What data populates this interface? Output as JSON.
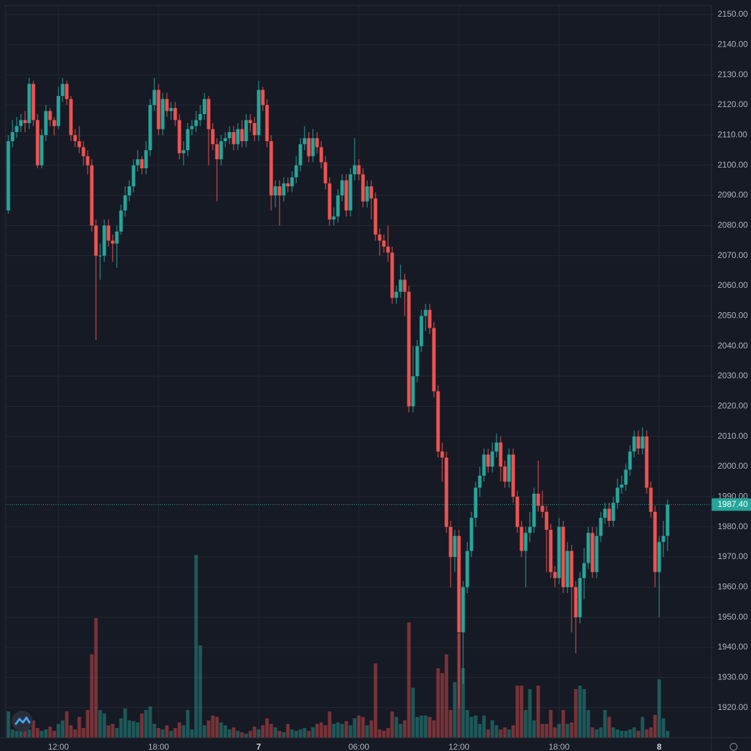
{
  "chart_data": {
    "type": "candlestick",
    "up_color": "#26a69a",
    "down_color": "#ef5350",
    "grid": true,
    "ylim": [
      1910,
      2153
    ],
    "yticks": [
      {
        "value": 1920,
        "label": "1920.00"
      },
      {
        "value": 1930,
        "label": "1930.00"
      },
      {
        "value": 1940,
        "label": "1940.00"
      },
      {
        "value": 1950,
        "label": "1950.00"
      },
      {
        "value": 1960,
        "label": "1960.00"
      },
      {
        "value": 1970,
        "label": "1970.00"
      },
      {
        "value": 1980,
        "label": "1980.00"
      },
      {
        "value": 1990,
        "label": "1990.00"
      },
      {
        "value": 2000,
        "label": "2000.00"
      },
      {
        "value": 2010,
        "label": "2010.00"
      },
      {
        "value": 2020,
        "label": "2020.00"
      },
      {
        "value": 2030,
        "label": "2030.00"
      },
      {
        "value": 2040,
        "label": "2040.00"
      },
      {
        "value": 2050,
        "label": "2050.00"
      },
      {
        "value": 2060,
        "label": "2060.00"
      },
      {
        "value": 2070,
        "label": "2070.00"
      },
      {
        "value": 2080,
        "label": "2080.00"
      },
      {
        "value": 2090,
        "label": "2090.00"
      },
      {
        "value": 2100,
        "label": "2100.00"
      },
      {
        "value": 2110,
        "label": "2110.00"
      },
      {
        "value": 2120,
        "label": "2120.00"
      },
      {
        "value": 2130,
        "label": "2130.00"
      },
      {
        "value": 2140,
        "label": "2140.00"
      },
      {
        "value": 2150,
        "label": "2150.00"
      }
    ],
    "price_line": {
      "value": 1987.4,
      "label": "1987.40"
    },
    "categories": [
      null,
      null,
      null,
      null,
      null,
      null,
      null,
      null,
      null,
      null,
      null,
      null,
      "12:00",
      null,
      null,
      null,
      null,
      null,
      null,
      null,
      null,
      null,
      null,
      null,
      null,
      null,
      null,
      null,
      null,
      null,
      null,
      null,
      null,
      null,
      null,
      null,
      "18:00",
      null,
      null,
      null,
      null,
      null,
      null,
      null,
      null,
      null,
      null,
      null,
      null,
      null,
      null,
      null,
      null,
      null,
      null,
      null,
      null,
      null,
      null,
      null,
      "7",
      null,
      null,
      null,
      null,
      null,
      null,
      null,
      null,
      null,
      null,
      null,
      null,
      null,
      null,
      null,
      null,
      null,
      null,
      null,
      null,
      null,
      null,
      null,
      "06:00",
      null,
      null,
      null,
      null,
      null,
      null,
      null,
      null,
      null,
      null,
      null,
      null,
      null,
      null,
      null,
      null,
      null,
      null,
      null,
      null,
      null,
      null,
      null,
      "12:00",
      null,
      null,
      null,
      null,
      null,
      null,
      null,
      null,
      null,
      null,
      null,
      null,
      null,
      null,
      null,
      null,
      null,
      null,
      null,
      null,
      null,
      null,
      null,
      "18:00",
      null,
      null,
      null,
      null,
      null,
      null,
      null,
      null,
      null,
      null,
      null,
      null,
      null,
      null,
      null,
      null,
      null,
      null,
      null,
      null,
      null,
      null,
      null,
      "8",
      null,
      null
    ],
    "open": [
      2085,
      2108,
      2111,
      2113,
      2115,
      2114,
      2127,
      2115,
      2100,
      2110,
      2118,
      2115,
      2113,
      2123,
      2127,
      2122,
      2110,
      2108,
      2106,
      2103,
      2100,
      2080,
      2070,
      2070,
      2080,
      2075,
      2074,
      2078,
      2085,
      2090,
      2093,
      2100,
      2102,
      2099,
      2105,
      2120,
      2125,
      2112,
      2122,
      2118,
      2119,
      2115,
      2104,
      2105,
      2112,
      2113,
      2115,
      2117,
      2122,
      2112,
      2107,
      2102,
      2108,
      2109,
      2111,
      2107,
      2112,
      2108,
      2115,
      2114,
      2110,
      2125,
      2120,
      2108,
      2090,
      2093,
      2090,
      2094,
      2093,
      2096,
      2100,
      2107,
      2109,
      2103,
      2109,
      2106,
      2101,
      2094,
      2082,
      2083,
      2090,
      2095,
      2085,
      2097,
      2100,
      2097,
      2088,
      2093,
      2089,
      2077,
      2075,
      2073,
      2071,
      2056,
      2058,
      2062,
      2058,
      2020,
      2030,
      2040,
      2050,
      2052,
      2046,
      2025,
      2005,
      2003,
      1980,
      1970,
      1977,
      1945,
      1960,
      1972,
      1983,
      1993,
      1997,
      2004,
      2000,
      2005,
      2008,
      2000,
      1995,
      2004,
      1990,
      1980,
      1972,
      1978,
      1980,
      1991,
      1987,
      1985,
      1979,
      1965,
      1963,
      1980,
      1960,
      1972,
      1960,
      1950,
      1963,
      1968,
      1978,
      1965,
      1977,
      1983,
      1986,
      1982,
      1988,
      1993,
      1994,
      1999,
      2005,
      2010,
      2006,
      2010,
      1993,
      1985,
      1965,
      1975,
      1977
    ],
    "high": [
      2110,
      2115,
      2116,
      2117,
      2118,
      2129,
      2128,
      2117,
      2112,
      2120,
      2119,
      2116,
      2126,
      2129,
      2128,
      2123,
      2112,
      2113,
      2108,
      2105,
      2102,
      2082,
      2074,
      2082,
      2082,
      2077,
      2080,
      2087,
      2093,
      2095,
      2102,
      2105,
      2103,
      2108,
      2122,
      2129,
      2127,
      2124,
      2124,
      2121,
      2121,
      2117,
      2108,
      2114,
      2115,
      2118,
      2120,
      2124,
      2123,
      2114,
      2109,
      2110,
      2111,
      2113,
      2113,
      2114,
      2115,
      2117,
      2117,
      2116,
      2128,
      2126,
      2122,
      2110,
      2095,
      2095,
      2096,
      2096,
      2098,
      2103,
      2109,
      2113,
      2111,
      2112,
      2111,
      2108,
      2103,
      2096,
      2086,
      2092,
      2097,
      2097,
      2099,
      2109,
      2102,
      2099,
      2095,
      2095,
      2091,
      2079,
      2077,
      2080,
      2073,
      2060,
      2067,
      2064,
      2060,
      2040,
      2042,
      2052,
      2054,
      2054,
      2048,
      2027,
      2008,
      2005,
      1982,
      1979,
      1979,
      1962,
      1975,
      1985,
      1995,
      2000,
      2006,
      2006,
      2008,
      2011,
      2010,
      2002,
      2006,
      2006,
      1992,
      1982,
      1980,
      1985,
      1993,
      2002,
      1992,
      1987,
      1981,
      1967,
      1983,
      1982,
      1975,
      1974,
      1962,
      1965,
      1973,
      1980,
      1980,
      1980,
      1985,
      1988,
      1988,
      1990,
      1996,
      1997,
      2001,
      2007,
      2012,
      2012,
      2013,
      2012,
      1995,
      1987,
      1977,
      1982,
      1989
    ],
    "low": [
      2084,
      2106,
      2109,
      2111,
      2111,
      2112,
      2113,
      2099,
      2099,
      2108,
      2113,
      2110,
      2112,
      2121,
      2120,
      2108,
      2106,
      2104,
      2100,
      2097,
      2078,
      2042,
      2062,
      2068,
      2073,
      2068,
      2066,
      2077,
      2083,
      2088,
      2091,
      2098,
      2097,
      2097,
      2103,
      2118,
      2110,
      2110,
      2116,
      2115,
      2113,
      2102,
      2100,
      2103,
      2110,
      2111,
      2113,
      2115,
      2100,
      2105,
      2088,
      2100,
      2106,
      2107,
      2105,
      2105,
      2106,
      2106,
      2111,
      2108,
      2108,
      2118,
      2106,
      2085,
      2086,
      2080,
      2088,
      2091,
      2091,
      2094,
      2098,
      2105,
      2101,
      2101,
      2104,
      2099,
      2092,
      2080,
      2080,
      2081,
      2088,
      2083,
      2083,
      2095,
      2095,
      2086,
      2086,
      2082,
      2075,
      2070,
      2071,
      2068,
      2054,
      2054,
      2056,
      2050,
      2018,
      2018,
      2028,
      2038,
      2045,
      2044,
      2023,
      2003,
      1995,
      1978,
      1960,
      1965,
      1920,
      1928,
      1958,
      1970,
      1980,
      1990,
      1995,
      1998,
      1998,
      2003,
      1995,
      1993,
      1993,
      1988,
      1978,
      1970,
      1960,
      1975,
      1978,
      1985,
      1983,
      1965,
      1963,
      1960,
      1961,
      1958,
      1958,
      1945,
      1938,
      1948,
      1956,
      1966,
      1963,
      1963,
      1975,
      1981,
      1980,
      1980,
      1986,
      1991,
      1992,
      1997,
      2003,
      2004,
      2004,
      1991,
      1983,
      1960,
      1950,
      1970,
      1972
    ],
    "close": [
      2108,
      2111,
      2113,
      2115,
      2114,
      2127,
      2115,
      2100,
      2110,
      2118,
      2115,
      2113,
      2123,
      2127,
      2122,
      2110,
      2108,
      2106,
      2103,
      2100,
      2080,
      2070,
      2070,
      2080,
      2075,
      2074,
      2078,
      2085,
      2090,
      2093,
      2100,
      2102,
      2099,
      2105,
      2120,
      2125,
      2112,
      2122,
      2118,
      2119,
      2115,
      2104,
      2105,
      2112,
      2113,
      2115,
      2117,
      2122,
      2112,
      2107,
      2102,
      2108,
      2109,
      2111,
      2107,
      2112,
      2108,
      2115,
      2114,
      2110,
      2125,
      2120,
      2108,
      2090,
      2093,
      2090,
      2094,
      2093,
      2096,
      2100,
      2107,
      2109,
      2103,
      2109,
      2106,
      2101,
      2094,
      2082,
      2083,
      2090,
      2095,
      2085,
      2097,
      2100,
      2097,
      2088,
      2093,
      2089,
      2077,
      2075,
      2073,
      2071,
      2056,
      2058,
      2062,
      2058,
      2020,
      2030,
      2040,
      2050,
      2052,
      2046,
      2025,
      2005,
      2003,
      1980,
      1970,
      1977,
      1945,
      1960,
      1972,
      1983,
      1993,
      1997,
      2004,
      2000,
      2005,
      2008,
      2000,
      1995,
      2004,
      1990,
      1980,
      1972,
      1978,
      1980,
      1991,
      1987,
      1985,
      1979,
      1965,
      1963,
      1980,
      1960,
      1972,
      1960,
      1950,
      1963,
      1968,
      1978,
      1965,
      1977,
      1983,
      1986,
      1982,
      1988,
      1993,
      1994,
      1999,
      2005,
      2010,
      2006,
      2010,
      1993,
      1985,
      1965,
      1975,
      1977,
      1987.4
    ],
    "volume": [
      38,
      12,
      10,
      15,
      18,
      12,
      25,
      14,
      10,
      12,
      16,
      10,
      20,
      25,
      38,
      18,
      12,
      30,
      14,
      40,
      120,
      172,
      40,
      35,
      18,
      20,
      14,
      28,
      42,
      25,
      24,
      22,
      35,
      40,
      45,
      20,
      14,
      12,
      18,
      10,
      14,
      22,
      18,
      40,
      12,
      263,
      133,
      18,
      25,
      32,
      30,
      22,
      18,
      12,
      15,
      10,
      8,
      6,
      10,
      16,
      12,
      18,
      28,
      20,
      15,
      10,
      8,
      20,
      12,
      10,
      12,
      14,
      10,
      15,
      20,
      22,
      18,
      38,
      20,
      22,
      20,
      24,
      18,
      28,
      32,
      30,
      18,
      25,
      107,
      12,
      10,
      14,
      38,
      30,
      20,
      25,
      166,
      72,
      30,
      32,
      32,
      30,
      25,
      100,
      93,
      120,
      40,
      80,
      150,
      100,
      40,
      30,
      32,
      20,
      32,
      12,
      25,
      18,
      12,
      15,
      12,
      18,
      75,
      75,
      40,
      70,
      25,
      75,
      20,
      20,
      40,
      15,
      20,
      40,
      20,
      22,
      70,
      75,
      70,
      40,
      15,
      12,
      15,
      40,
      30,
      15,
      12,
      10,
      10,
      12,
      15,
      10,
      30,
      12,
      15,
      33,
      84,
      28,
      10
    ]
  }
}
